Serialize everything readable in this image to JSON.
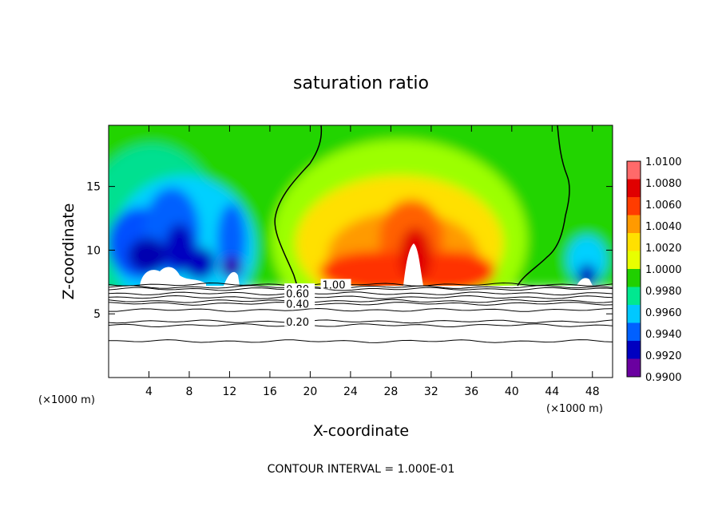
{
  "chart_data": {
    "type": "heatmap",
    "title": "saturation ratio",
    "xlabel": "X-coordinate",
    "ylabel": "Z-coordinate",
    "x_unit": "(×1000 m)",
    "y_unit": "(×1000 m)",
    "xlim": [
      0,
      50
    ],
    "ylim": [
      0,
      19.8
    ],
    "x_ticks": [
      4,
      8,
      12,
      16,
      20,
      24,
      28,
      32,
      36,
      40,
      44,
      48
    ],
    "y_ticks": [
      5,
      10,
      15
    ],
    "colorbar": {
      "levels": [
        "1.0100",
        "1.0080",
        "1.0060",
        "1.0040",
        "1.0020",
        "1.0000",
        "0.9980",
        "0.9960",
        "0.9940",
        "0.9920",
        "0.9900"
      ],
      "colors": [
        "#ff6a6a",
        "#e00000",
        "#ff3c00",
        "#ff9a00",
        "#ffe000",
        "#e8ff00",
        "#20d000",
        "#00e890",
        "#00c8ff",
        "#0060ff",
        "#0000c0",
        "#6a00a0"
      ]
    },
    "cloud_top_z": 7.3,
    "contour_lines_below": [
      {
        "label": "1.00",
        "z": 7.3,
        "label_x": 21.2
      },
      {
        "label": "0.80",
        "z": 6.95,
        "label_x": 17.6
      },
      {
        "label": "0.60",
        "z": 6.6,
        "label_x": 17.6
      },
      {
        "label": "0.40",
        "z": 5.8,
        "label_x": 17.6
      },
      {
        "label": "0.20",
        "z": 4.4,
        "label_x": 17.6
      }
    ],
    "unlabeled_contours_z": [
      7.1,
      6.3,
      6.0,
      5.3,
      4.1,
      2.85
    ],
    "footer_note": "CONTOUR INTERVAL = 1.000E-01"
  }
}
